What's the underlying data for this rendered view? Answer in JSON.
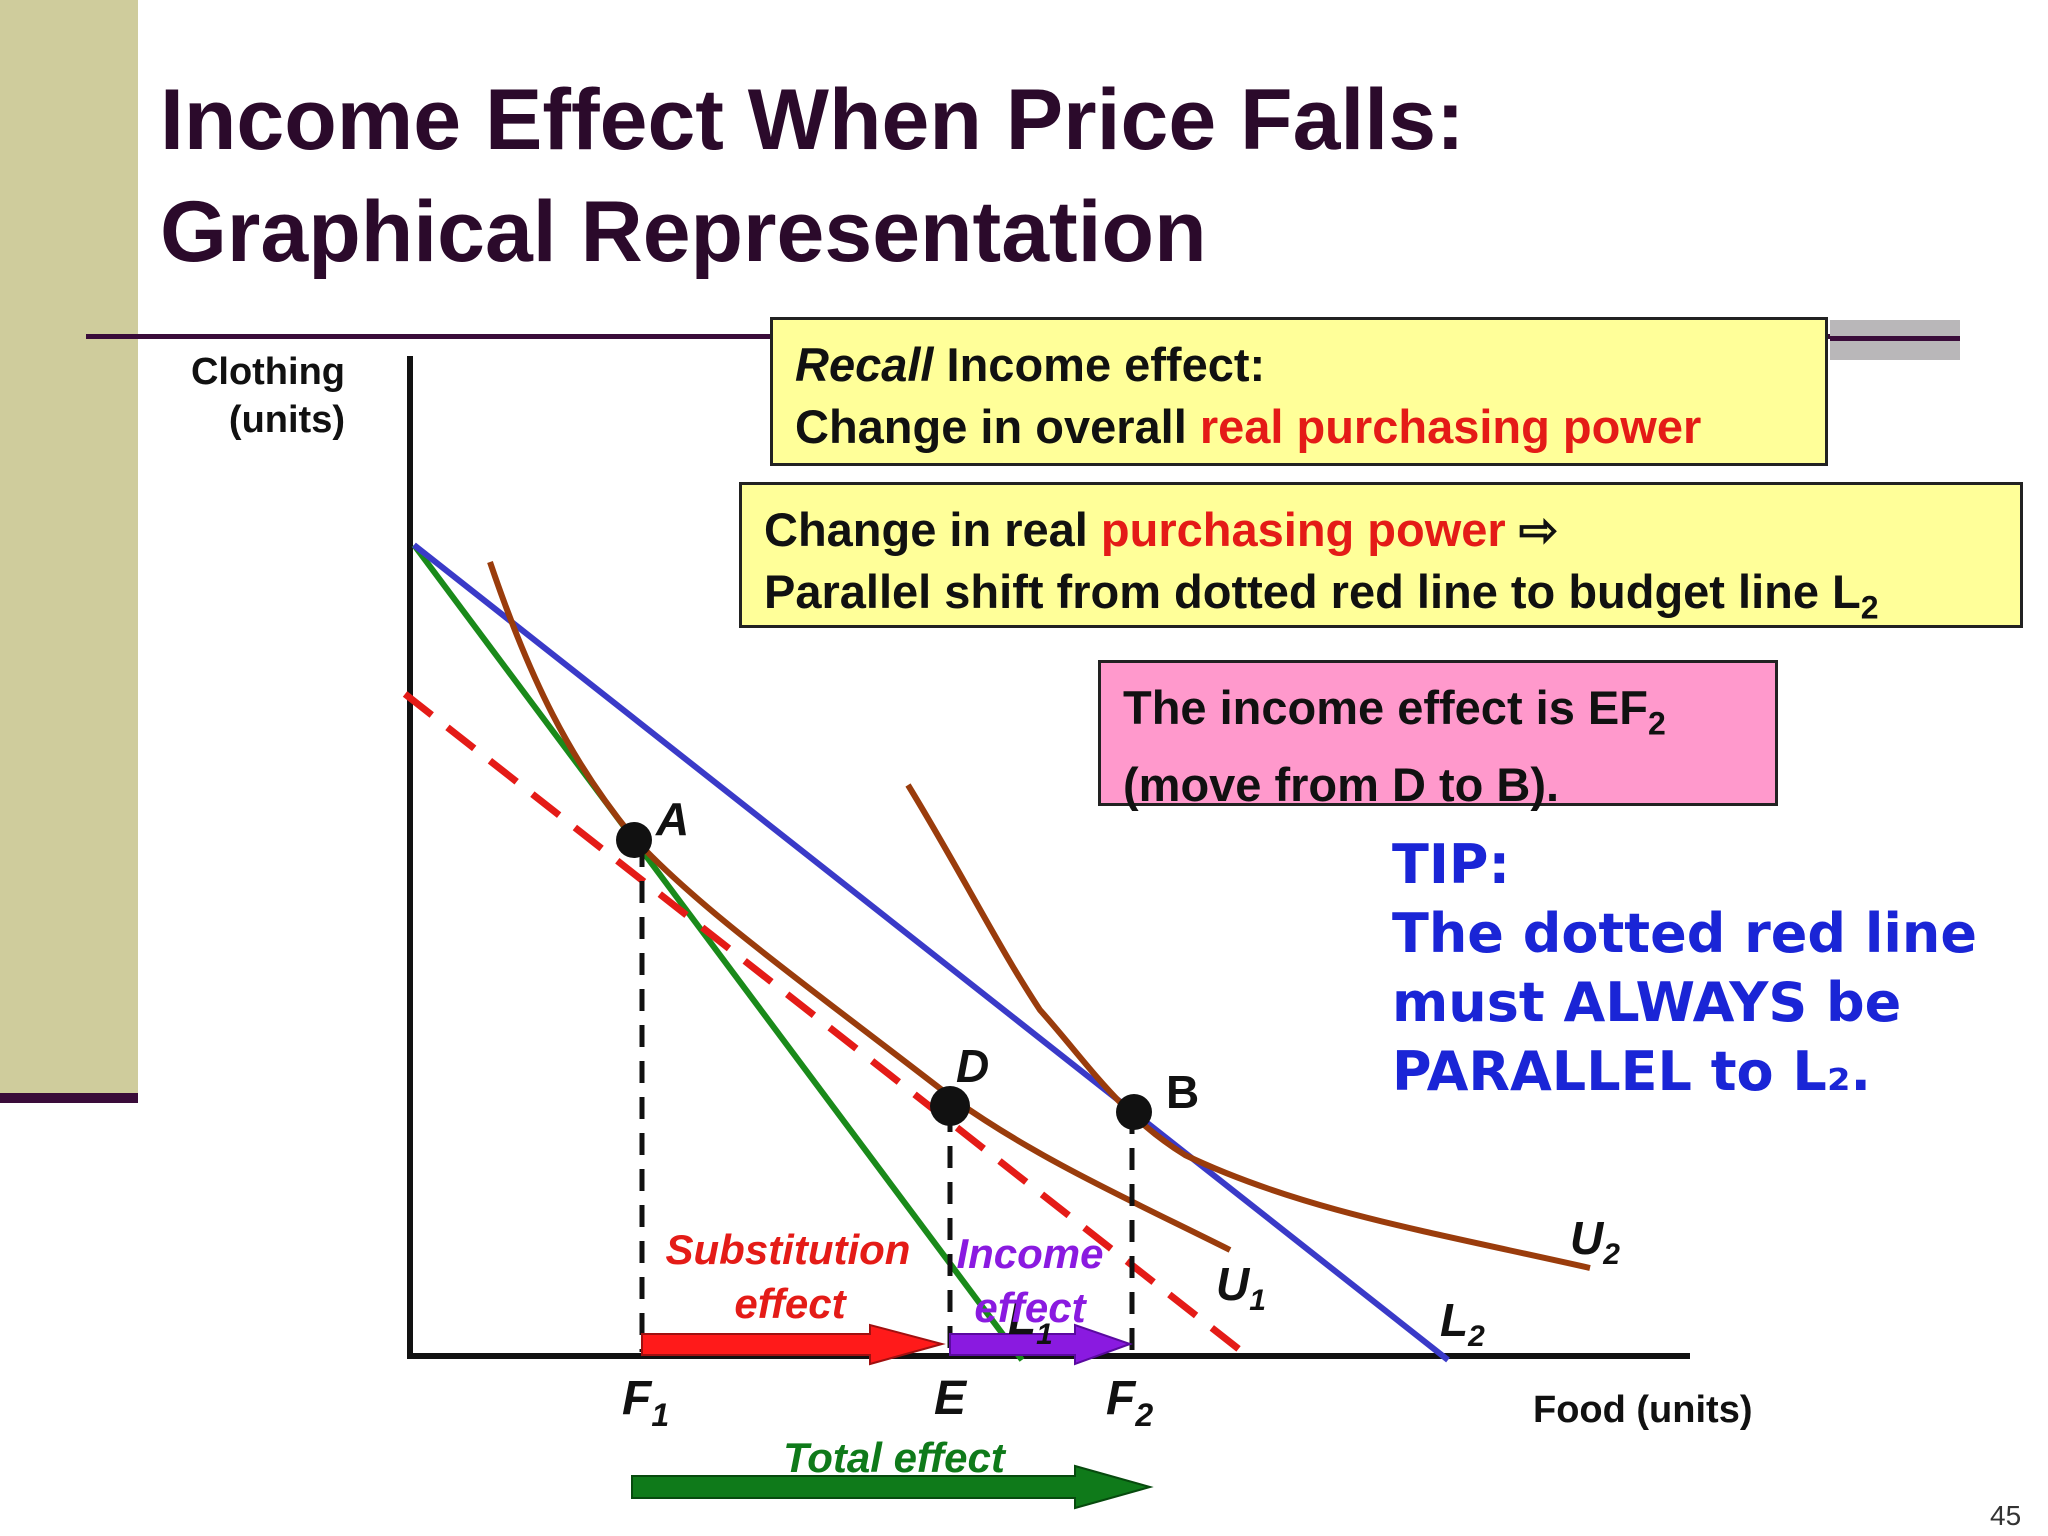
{
  "slide": {
    "title_line1": "Income Effect When Price Falls:",
    "title_line2": "Graphical Representation",
    "page_number": "45"
  },
  "callouts": {
    "recall": {
      "italic": "Recall",
      "rest": " Income effect:",
      "line2_plain": "Change in overall ",
      "line2_red": "real purchasing power"
    },
    "change": {
      "line1_plain": "Change in real ",
      "line1_red": "purchasing power",
      "line1_arrow": " ⇨",
      "line2": "Parallel shift from dotted red line to budget line L",
      "line2_sub": "2"
    },
    "income": {
      "line1": "The income effect is EF",
      "line1_sub": "2",
      "line2": "(move from D to B)."
    },
    "tip": {
      "line1": "TIP:",
      "line2": "The dotted red line",
      "line3": "must ALWAYS be",
      "line4": "PARALLEL to L₂."
    }
  },
  "diagram": {
    "y_axis_label_1": "Clothing",
    "y_axis_label_2": "(units)",
    "x_axis_label": "Food (units)",
    "points": {
      "a": "A",
      "d": "D",
      "b": "B"
    },
    "x_marks": {
      "f1": "F",
      "f1_sub": "1",
      "e": "E",
      "f2": "F",
      "f2_sub": "2"
    },
    "curves": {
      "u1": "U",
      "u1_sub": "1",
      "u2": "U",
      "u2_sub": "2",
      "l1": "L",
      "l1_sub": "1",
      "l2": "L",
      "l2_sub": "2"
    },
    "effects": {
      "substitution_1": "Substitution",
      "substitution_2": "effect",
      "income_1": "Income",
      "income_2": "effect",
      "total": "Total effect"
    },
    "colors": {
      "budget_l1": "#1a8a1a",
      "budget_l2": "#3a3ac8",
      "indifference": "#9a3c0c",
      "dashed_parallel": "#e41b17",
      "substitution_arrow": "#ff1a1a",
      "income_arrow": "#8a1ae0",
      "total_arrow": "#0f7a1a"
    }
  }
}
